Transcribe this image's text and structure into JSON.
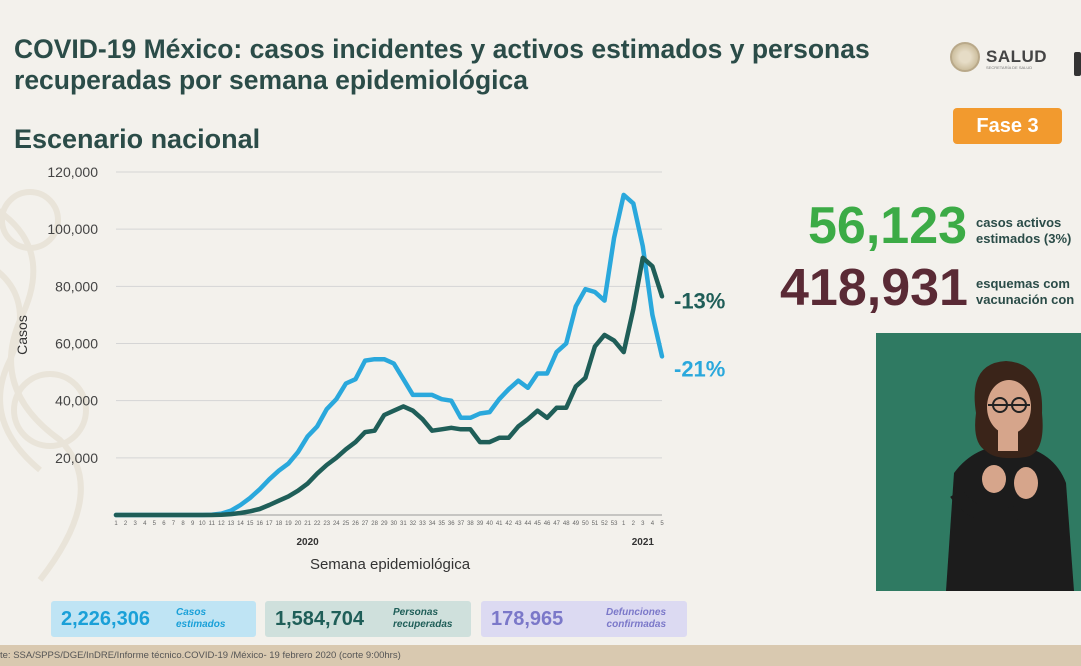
{
  "header": {
    "title": "COVID-19 México: casos incidentes y activos estimados y personas recuperadas por semana epidemiológica",
    "subtitle": "Escenario nacional",
    "logo_text": "SALUD",
    "logo_sub": "SECRETARÍA DE SALUD",
    "phase_badge": "Fase 3"
  },
  "stats": {
    "active_value": "56,123",
    "active_label_1": "casos activos",
    "active_label_2": "estimados (3%)",
    "vacc_value": "418,931",
    "vacc_label_1": "esquemas com",
    "vacc_label_2": "vacunación con"
  },
  "summary": {
    "cases_value": "2,226,306",
    "cases_label_1": "Casos",
    "cases_label_2": "estimados",
    "recovered_value": "1,584,704",
    "recovered_label_1": "Personas",
    "recovered_label_2": "recuperadas",
    "deaths_value": "178,965",
    "deaths_label_1": "Defunciones",
    "deaths_label_2": "confirmadas"
  },
  "footer": {
    "source": "te: SSA/SPPS/DGE/InDRE/Informe técnico.COVID-19 /México- 19 febrero 2020 (corte 9:00hrs)"
  },
  "colors": {
    "incident": "#2aa8dc",
    "active": "#1f5e58",
    "active_value": "#3cab46",
    "vacc_value": "#5a2a35",
    "phase": "#f29a2e"
  },
  "chart_data": {
    "type": "line",
    "xlabel": "Semana epidemiológica",
    "ylabel": "Casos",
    "ylim": [
      0,
      120000
    ],
    "yticks": [
      "120,000",
      "100,000",
      "80,000",
      "60,000",
      "40,000",
      "20,000"
    ],
    "year_labels": [
      "2020",
      "2021"
    ],
    "x": [
      "1",
      "2",
      "3",
      "4",
      "5",
      "6",
      "7",
      "8",
      "9",
      "10",
      "11",
      "12",
      "13",
      "14",
      "15",
      "16",
      "17",
      "18",
      "19",
      "20",
      "21",
      "22",
      "23",
      "24",
      "25",
      "26",
      "27",
      "28",
      "29",
      "30",
      "31",
      "32",
      "33",
      "34",
      "35",
      "36",
      "37",
      "38",
      "39",
      "40",
      "41",
      "42",
      "43",
      "44",
      "45",
      "46",
      "47",
      "48",
      "49",
      "50",
      "51",
      "52",
      "53",
      "1",
      "2",
      "3",
      "4",
      "5"
    ],
    "series": [
      {
        "values": [
          0,
          0,
          0,
          0,
          0,
          0,
          0,
          0,
          0,
          0,
          100,
          500,
          1500,
          3500,
          6000,
          9000,
          12500,
          15500,
          18000,
          22000,
          27500,
          31000,
          37000,
          40500,
          46000,
          47500,
          54000,
          54500,
          54500,
          53000,
          47500,
          42000,
          42000,
          42000,
          40500,
          40000,
          34000,
          34000,
          35500,
          36000,
          40500,
          44000,
          47000,
          44500,
          49500,
          49500,
          57000,
          60000,
          73000,
          79000,
          78000,
          75000,
          97000,
          112000,
          109000,
          94000,
          70000,
          55500
        ],
        "label": "-21%",
        "color": "#2aa8dc"
      },
      {
        "values": [
          0,
          0,
          0,
          0,
          0,
          0,
          0,
          0,
          0,
          0,
          0,
          100,
          300,
          700,
          1300,
          2100,
          3500,
          5000,
          6500,
          8500,
          11000,
          14500,
          17500,
          20000,
          23000,
          25500,
          29000,
          29500,
          35000,
          36500,
          38000,
          36500,
          33500,
          29500,
          30000,
          30500,
          30000,
          30000,
          25500,
          25500,
          27000,
          27000,
          31000,
          33500,
          36500,
          34000,
          37500,
          37500,
          45000,
          48000,
          59000,
          63000,
          61000,
          57000,
          72000,
          90000,
          87000,
          76500
        ],
        "label": "-13%",
        "color": "#1f5e58"
      }
    ]
  }
}
